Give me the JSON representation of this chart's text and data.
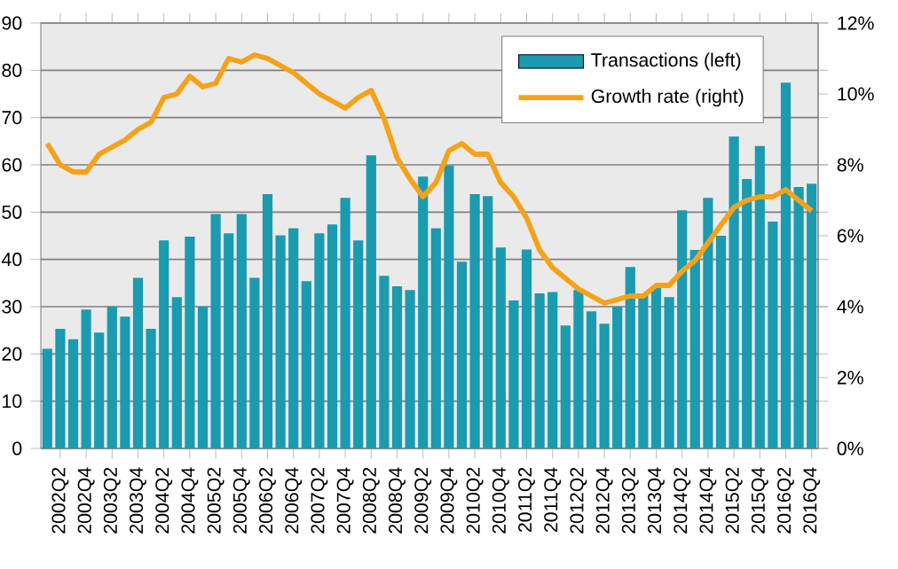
{
  "chart_data": {
    "type": "bar",
    "categories": [
      null,
      "2002Q2",
      null,
      "2002Q4",
      null,
      "2003Q2",
      null,
      "2003Q4",
      null,
      "2004Q2",
      null,
      "2004Q4",
      null,
      "2005Q2",
      null,
      "2005Q4",
      null,
      "2006Q2",
      null,
      "2006Q4",
      null,
      "2007Q2",
      null,
      "2007Q4",
      null,
      "2008Q2",
      null,
      "2008Q4",
      null,
      "2009Q2",
      null,
      "2009Q4",
      null,
      "2010Q2",
      null,
      "2010Q4",
      null,
      "2011Q2",
      null,
      "2011Q4",
      null,
      "2012Q2",
      null,
      "2012Q4",
      null,
      "2013Q2",
      null,
      "2013Q4",
      null,
      "2014Q2",
      null,
      "2014Q4",
      null,
      "2015Q2",
      null,
      "2015Q4",
      null,
      "2016Q2",
      null,
      "2016Q4"
    ],
    "series": [
      {
        "name": "Transactions (left)",
        "color": "#1a9bb0",
        "values": [
          21.1,
          25.3,
          23.1,
          29.4,
          24.5,
          30,
          27.9,
          36.1,
          25.3,
          44,
          32,
          44.8,
          30,
          49.6,
          45.5,
          49.6,
          36.1,
          53.8,
          45.1,
          46.6,
          35.4,
          45.5,
          47.4,
          53,
          44,
          62,
          36.5,
          34.3,
          33.5,
          57.5,
          46.6,
          59.8,
          39.5,
          53.8,
          53.4,
          42.5,
          31.3,
          42.1,
          32.8,
          33.1,
          26,
          33.5,
          29,
          26.4,
          30,
          38.4,
          32.5,
          34,
          32,
          50.4,
          42,
          53,
          45,
          66,
          57,
          64,
          48,
          77.4,
          55.3,
          56
        ]
      },
      {
        "name": "Growth rate (right)",
        "type": "line",
        "axis": "y2",
        "color": "#f5a21b",
        "values": [
          8.6,
          8.0,
          7.8,
          7.8,
          8.3,
          8.5,
          8.7,
          9.0,
          9.2,
          9.9,
          10.0,
          10.5,
          10.2,
          10.3,
          11.0,
          10.9,
          11.1,
          11.0,
          10.8,
          10.6,
          10.3,
          10.0,
          9.8,
          9.6,
          9.9,
          10.1,
          9.3,
          8.2,
          7.6,
          7.1,
          7.5,
          8.4,
          8.6,
          8.3,
          8.3,
          7.5,
          7.1,
          6.5,
          5.6,
          5.1,
          4.8,
          4.5,
          4.3,
          4.1,
          4.2,
          4.3,
          4.3,
          4.6,
          4.6,
          5.0,
          5.3,
          5.8,
          6.3,
          6.8,
          7.0,
          7.1,
          7.1,
          7.3,
          7.0,
          6.7
        ]
      }
    ],
    "ylim": [
      0,
      90
    ],
    "yticks": [
      0,
      10,
      20,
      30,
      40,
      50,
      60,
      70,
      80,
      90
    ],
    "y2lim": [
      0,
      12
    ],
    "y2ticks": [
      {
        "value": 0,
        "label": "0%"
      },
      {
        "value": 2,
        "label": "2%"
      },
      {
        "value": 4,
        "label": "4%"
      },
      {
        "value": 6,
        "label": "6%"
      },
      {
        "value": 8,
        "label": "8%"
      },
      {
        "value": 10,
        "label": "10%"
      },
      {
        "value": 12,
        "label": "12%"
      }
    ],
    "grid": "y",
    "legend": "top right"
  }
}
